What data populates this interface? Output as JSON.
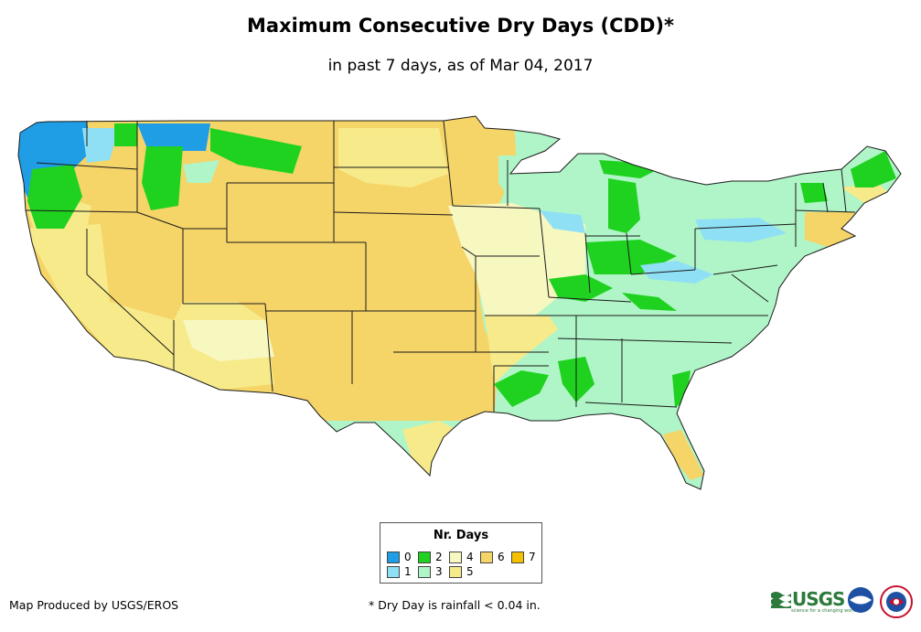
{
  "title": "Maximum Consecutive Dry Days (CDD)*",
  "subtitle": "in past 7 days, as of Mar 04, 2017",
  "legend": {
    "title": "Nr. Days",
    "items": [
      {
        "label": "0",
        "color": "#1f9ee6"
      },
      {
        "label": "1",
        "color": "#8fe0f5"
      },
      {
        "label": "2",
        "color": "#1fd21f"
      },
      {
        "label": "3",
        "color": "#b0f5c8"
      },
      {
        "label": "4",
        "color": "#f7f7c0"
      },
      {
        "label": "5",
        "color": "#f7ea8a"
      },
      {
        "label": "6",
        "color": "#f5d468"
      },
      {
        "label": "7",
        "color": "#f5c000"
      }
    ]
  },
  "credit": "Map Produced by USGS/EROS",
  "footnote": "* Dry Day is rainfall < 0.04 in.",
  "logos": {
    "usgs_text": "USGS",
    "usgs_tagline": "science for a changing world",
    "noaa_icon": "noaa-logo-icon",
    "nws_icon": "nws-logo-icon"
  }
}
